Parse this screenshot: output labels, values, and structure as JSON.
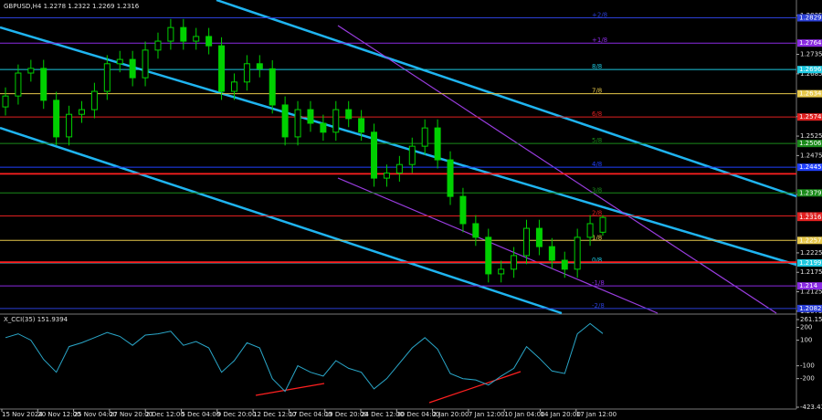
{
  "chart_data": [
    {
      "type": "candlestick",
      "title": "GBPUSD,H4 1.2278 1.2322 1.2269 1.2316",
      "time_axis": [
        "15 Nov 2024",
        "20 Nov 12:00",
        "25 Nov 04:00",
        "27 Nov 20:00",
        "2 Dec 12:00",
        "5 Dec 04:00",
        "9 Dec 20:00",
        "12 Dec 12:00",
        "17 Dec 04:00",
        "19 Dec 20:00",
        "24 Dec 12:00",
        "30 Dec 04:00",
        "2 Jan 20:00",
        "7 Jan 12:00",
        "10 Jan 04:00",
        "14 Jan 20:00",
        "17 Jan 12:00"
      ],
      "open": [
        1.26,
        1.2628,
        1.2687,
        1.2699,
        1.2617,
        1.2523,
        1.2581,
        1.2593,
        1.264,
        1.2711,
        1.2722,
        1.2675,
        1.2746,
        1.2769,
        1.2804,
        1.2769,
        1.2781,
        1.2757,
        1.264,
        1.2664,
        1.2711,
        1.2698,
        1.2605,
        1.2523,
        1.2593,
        1.2558,
        1.2535,
        1.2593,
        1.257,
        1.2535,
        1.2417,
        1.243,
        1.2452,
        1.2499,
        1.2546,
        1.2464,
        1.237,
        1.23,
        1.2265,
        1.2171,
        1.2183,
        1.2218,
        1.2288,
        1.2241,
        1.2206,
        1.2183,
        1.2265,
        1.2278
      ],
      "high": [
        1.265,
        1.2709,
        1.2721,
        1.2721,
        1.2639,
        1.2603,
        1.2615,
        1.2662,
        1.2733,
        1.2744,
        1.2744,
        1.2768,
        1.2791,
        1.2826,
        1.2826,
        1.2803,
        1.2803,
        1.2779,
        1.2686,
        1.2733,
        1.2733,
        1.272,
        1.2627,
        1.2615,
        1.2615,
        1.258,
        1.2615,
        1.2615,
        1.2592,
        1.2557,
        1.2452,
        1.2474,
        1.2521,
        1.2568,
        1.2568,
        1.2486,
        1.2392,
        1.2322,
        1.2287,
        1.2205,
        1.224,
        1.231,
        1.231,
        1.2263,
        1.2228,
        1.2287,
        1.2322,
        1.2322
      ],
      "low": [
        1.2578,
        1.2606,
        1.2665,
        1.2595,
        1.2501,
        1.2501,
        1.2559,
        1.2571,
        1.2618,
        1.2689,
        1.2653,
        1.2653,
        1.2724,
        1.2747,
        1.2747,
        1.2747,
        1.2735,
        1.2618,
        1.2618,
        1.2642,
        1.2676,
        1.2583,
        1.2501,
        1.2501,
        1.2536,
        1.2513,
        1.2513,
        1.2548,
        1.2513,
        1.2395,
        1.2395,
        1.2408,
        1.243,
        1.2477,
        1.2442,
        1.2348,
        1.2278,
        1.2243,
        1.2149,
        1.2149,
        1.2161,
        1.2196,
        1.2219,
        1.2184,
        1.2161,
        1.2161,
        1.2243,
        1.2269
      ],
      "close": [
        1.2628,
        1.2687,
        1.2699,
        1.2617,
        1.2523,
        1.2581,
        1.2593,
        1.264,
        1.2711,
        1.2722,
        1.2675,
        1.2746,
        1.2769,
        1.2804,
        1.2769,
        1.2781,
        1.2757,
        1.264,
        1.2664,
        1.2711,
        1.2698,
        1.2605,
        1.2523,
        1.2593,
        1.2558,
        1.2535,
        1.2593,
        1.257,
        1.2535,
        1.2417,
        1.243,
        1.2452,
        1.2499,
        1.2546,
        1.2464,
        1.237,
        1.23,
        1.2265,
        1.2171,
        1.2183,
        1.2218,
        1.2288,
        1.2241,
        1.2206,
        1.2183,
        1.2265,
        1.23,
        1.2316
      ],
      "up_color": "#00d000",
      "down_color": "#00d000",
      "ylim": [
        1.207,
        1.2863
      ],
      "yticks": [
        1.2835,
        1.2735,
        1.2685,
        1.2575,
        1.2525,
        1.2475,
        1.2375,
        1.2225,
        1.2175,
        1.2125,
        1.2075
      ],
      "levels": [
        {
          "label": "+2/8",
          "value": 1.2829,
          "color": "#2b3fd6"
        },
        {
          "label": "+1/8",
          "value": 1.2764,
          "color": "#8a2be2"
        },
        {
          "label": "8/8",
          "value": 1.2696,
          "color": "#1ec8e0"
        },
        {
          "label": "7/8",
          "value": 1.2634,
          "color": "#e6c84a"
        },
        {
          "label": "6/8",
          "value": 1.2574,
          "color": "#e02020"
        },
        {
          "label": "5/8",
          "value": 1.2506,
          "color": "#1a8a1a"
        },
        {
          "label": "4/8",
          "value": 1.2445,
          "color": "#2040ff"
        },
        {
          "label": "3/8",
          "value": 1.2379,
          "color": "#1a8a1a"
        },
        {
          "label": "2/8",
          "value": 1.232,
          "color": "#e02020"
        },
        {
          "label": "1/8",
          "value": 1.2257,
          "color": "#e6c84a"
        },
        {
          "label": "0/8",
          "value": 1.2199,
          "color": "#1ec8e0"
        },
        {
          "label": "-1/8",
          "value": 1.214,
          "color": "#8a2be2"
        },
        {
          "label": "-2/8",
          "value": 1.2082,
          "color": "#2b3fd6"
        }
      ],
      "hlines": [
        {
          "value": 1.2428,
          "color": "#ff2020"
        },
        {
          "value": 1.2201,
          "color": "#ff2020"
        }
      ],
      "price_label": {
        "value": 1.2316,
        "color": "#e02020"
      }
    },
    {
      "type": "line",
      "title": "X_CCI(35) 151.9394",
      "color": "#2aa7c9",
      "values": [
        120,
        150,
        100,
        -50,
        -150,
        50,
        80,
        120,
        160,
        130,
        60,
        140,
        150,
        170,
        60,
        90,
        40,
        -150,
        -60,
        80,
        40,
        -200,
        -300,
        -100,
        -150,
        -180,
        -60,
        -120,
        -150,
        -280,
        -200,
        -80,
        40,
        120,
        30,
        -160,
        -200,
        -210,
        -250,
        -180,
        -120,
        50,
        -40,
        -140,
        -160,
        150,
        230,
        151.9394
      ],
      "ylim": [
        -423.4398,
        261.15
      ],
      "yticks": [
        {
          "value": 261.15,
          "label": "261.1500"
        },
        200,
        100,
        -100,
        -200,
        {
          "value": -423.4398,
          "label": "-423.4398"
        }
      ]
    }
  ]
}
